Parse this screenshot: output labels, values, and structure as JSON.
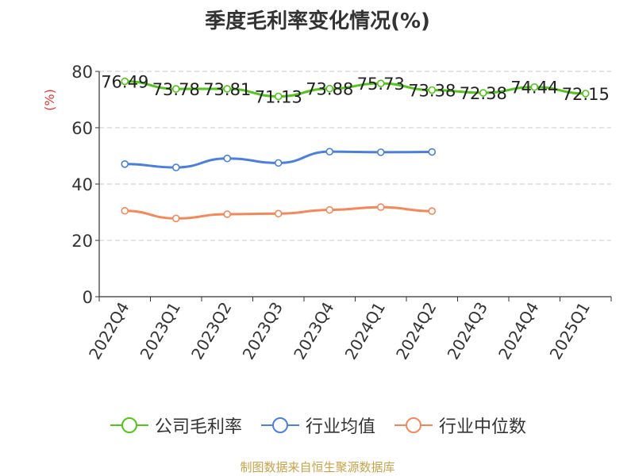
{
  "title": "季度毛利率变化情况(%)",
  "source": "制图数据来自恒生聚源数据库",
  "chart_data": {
    "type": "line",
    "title": "季度毛利率变化情况(%)",
    "ylabel": "(%)",
    "xlabel": "",
    "ylim": [
      0,
      80
    ],
    "yticks": [
      0,
      20,
      40,
      60,
      80
    ],
    "grid": true,
    "legend_position": "bottom",
    "categories": [
      "2022Q4",
      "2023Q1",
      "2023Q2",
      "2023Q3",
      "2023Q4",
      "2024Q1",
      "2024Q2",
      "2024Q3",
      "2024Q4",
      "2025Q1"
    ],
    "series": [
      {
        "name": "公司毛利率",
        "color": "#52c41a",
        "values": [
          76.49,
          73.78,
          73.81,
          71.13,
          73.88,
          75.73,
          73.38,
          72.38,
          74.44,
          72.15
        ],
        "labels": [
          "76.49",
          "73.78",
          "73.81",
          "71.13",
          "73.88",
          "75.73",
          "73.38",
          "72.38",
          "74.44",
          "72.15"
        ]
      },
      {
        "name": "行业均值",
        "color": "#4a7fdc",
        "values": [
          47.1,
          45.9,
          49.1,
          47.5,
          51.5,
          51.3,
          51.4,
          null,
          null,
          null
        ]
      },
      {
        "name": "行业中位数",
        "color": "#f4885a",
        "values": [
          30.5,
          27.8,
          29.3,
          29.5,
          30.8,
          31.8,
          30.4,
          null,
          null,
          null
        ]
      }
    ]
  }
}
